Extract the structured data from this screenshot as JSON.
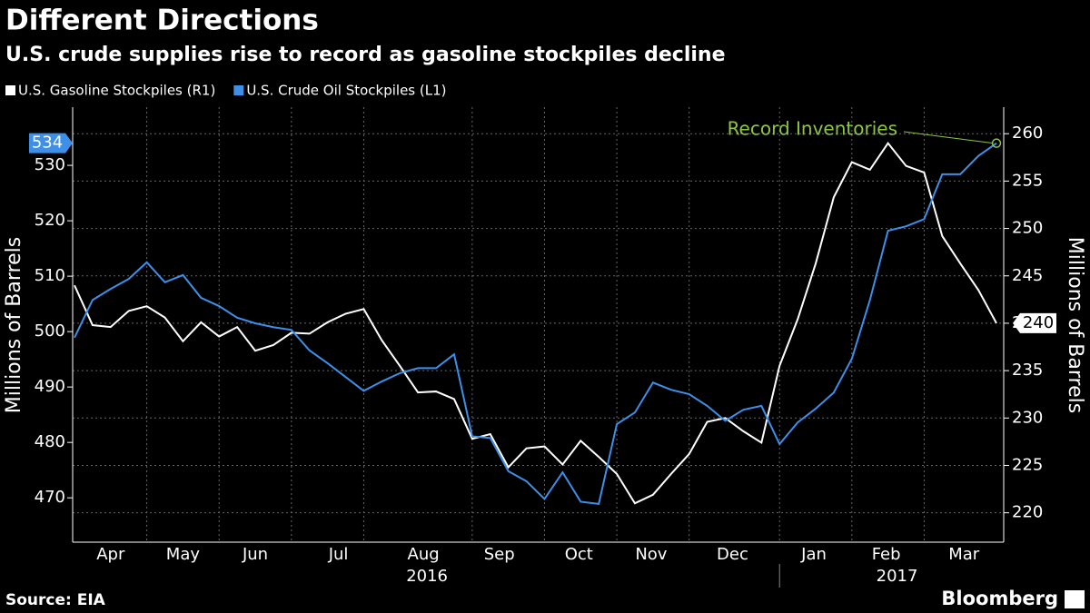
{
  "chart_data": {
    "type": "line",
    "title": "Different Directions",
    "subtitle": "U.S. crude supplies rise to record as gasoline stockpiles decline",
    "ylabel": "Millions of Barrels",
    "y2label": "Millions of Barrels",
    "source": "Source: EIA",
    "brand": "Bloomberg",
    "x": [
      0,
      1,
      2,
      3,
      4,
      5,
      6,
      7,
      8,
      9,
      10,
      11,
      12,
      13,
      14,
      15,
      16,
      17,
      18,
      19,
      20,
      21,
      22,
      23,
      24,
      25,
      26,
      27,
      28,
      29,
      30,
      31,
      32,
      33,
      34,
      35,
      36,
      37,
      38,
      39,
      40,
      41,
      42,
      43,
      44,
      45,
      46,
      47,
      48,
      49,
      50,
      51
    ],
    "xlim": [
      -0.1,
      51.4
    ],
    "xticks": [
      {
        "value": 2.0,
        "label": "Apr"
      },
      {
        "value": 6.0,
        "label": "May"
      },
      {
        "value": 10.0,
        "label": "Jun"
      },
      {
        "value": 14.6,
        "label": "Jul"
      },
      {
        "value": 19.3,
        "label": "Aug"
      },
      {
        "value": 23.5,
        "label": "Sep"
      },
      {
        "value": 27.9,
        "label": "Oct"
      },
      {
        "value": 31.9,
        "label": "Nov"
      },
      {
        "value": 36.4,
        "label": "Dec"
      },
      {
        "value": 40.9,
        "label": "Jan"
      },
      {
        "value": 44.9,
        "label": "Feb"
      },
      {
        "value": 49.2,
        "label": "Mar"
      }
    ],
    "x_gridlines": [
      4.0,
      8.0,
      12.0,
      16.0,
      22.0,
      26.0,
      30.0,
      34.0,
      39.0,
      43.0,
      47.0
    ],
    "year_ticks": [
      {
        "value": 19.5,
        "label": "2016"
      },
      {
        "value": 45.5,
        "label": "2017"
      }
    ],
    "year_divider": 39.0,
    "ylim": [
      462,
      540.5
    ],
    "yticks": [
      470,
      480,
      490,
      500,
      510,
      520,
      530
    ],
    "y2lim": [
      216.9,
      262.8
    ],
    "y2ticks": [
      220,
      225,
      230,
      235,
      240,
      245,
      250,
      255,
      260
    ],
    "grid": true,
    "series": [
      {
        "name": "U.S. Gasoline Stockpiles (R1)",
        "color": "#ffffff",
        "axis": "y2",
        "values": [
          244.0,
          239.8,
          239.6,
          241.3,
          241.8,
          240.6,
          238.1,
          240.1,
          238.6,
          239.6,
          237.1,
          237.7,
          239.0,
          238.9,
          240.1,
          241.0,
          241.5,
          238.2,
          235.5,
          232.7,
          232.8,
          232.0,
          227.8,
          228.3,
          224.8,
          226.8,
          227.0,
          225.1,
          227.6,
          225.9,
          224.1,
          221.0,
          221.9,
          224.1,
          226.2,
          229.6,
          230.0,
          228.6,
          227.4,
          235.5,
          240.4,
          246.3,
          253.3,
          257.0,
          256.2,
          259.0,
          256.6,
          255.9,
          249.2,
          246.3,
          243.5,
          240.0
        ]
      },
      {
        "name": "U.S. Crude Oil Stockpiles (L1)",
        "color": "#3d8fe8",
        "axis": "y",
        "values": [
          498.9,
          505.7,
          507.7,
          509.5,
          512.5,
          508.9,
          510.2,
          506.1,
          504.6,
          502.5,
          501.5,
          500.8,
          500.3,
          496.6,
          494.3,
          491.8,
          489.3,
          491.0,
          492.5,
          493.4,
          493.4,
          495.9,
          481.1,
          480.8,
          474.8,
          473.0,
          469.8,
          474.6,
          469.3,
          468.9,
          483.3,
          485.4,
          490.8,
          489.5,
          488.7,
          486.6,
          483.9,
          485.9,
          486.6,
          479.7,
          483.6,
          486.1,
          489.0,
          495.1,
          505.7,
          518.2,
          519.0,
          520.3,
          528.4,
          528.4,
          531.7,
          534.0
        ]
      }
    ],
    "annotation": {
      "text": "Record Inventories",
      "color": "#8dc63f"
    }
  }
}
